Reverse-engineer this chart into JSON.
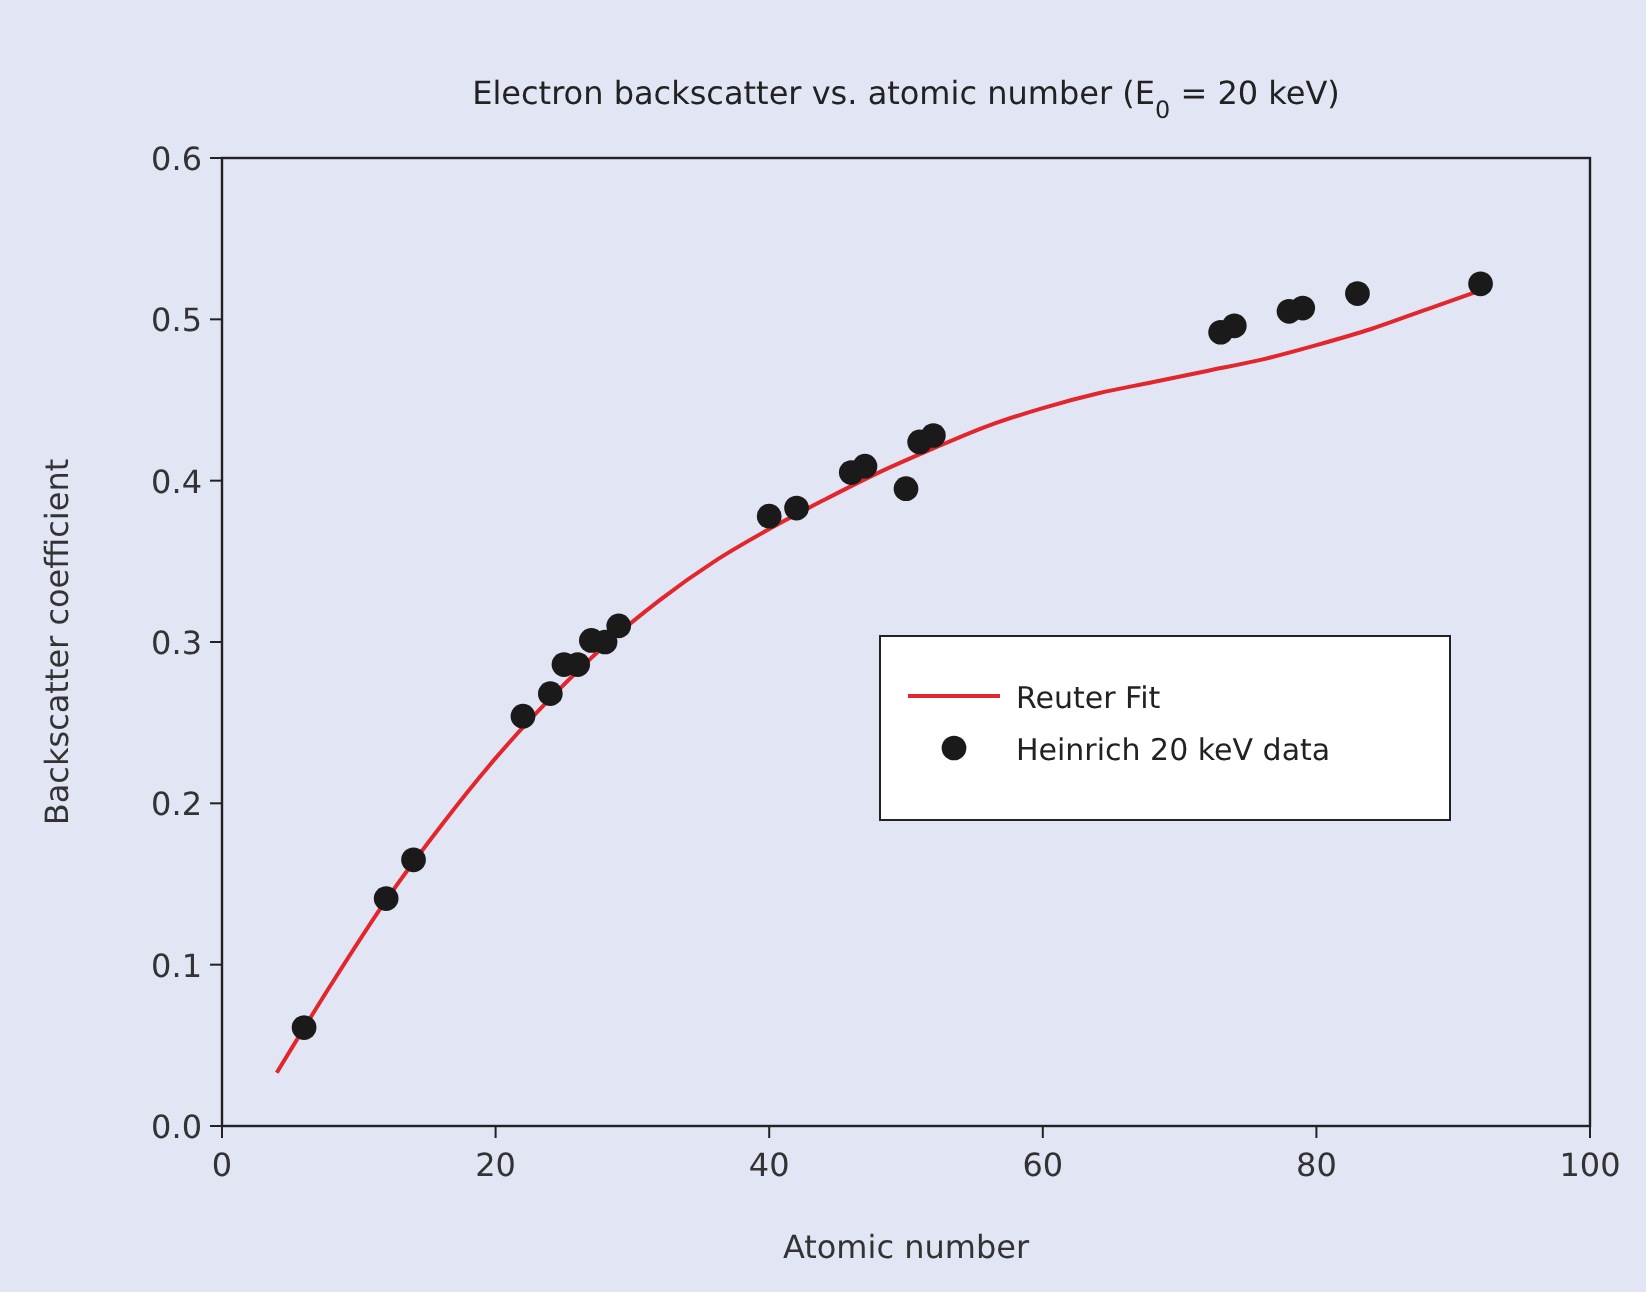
{
  "chart_data": {
    "type": "scatter",
    "title": "Electron backscatter vs. atomic number (E$_{0}$ = 20 keV)",
    "xlabel": "Atomic number",
    "ylabel": "Backscatter coefficient",
    "xlim": [
      0,
      100
    ],
    "xticks": [
      0,
      20,
      40,
      60,
      80,
      100
    ],
    "ylim": [
      0,
      0.6
    ],
    "yticks": [
      {
        "value": 0,
        "label": "0.0"
      },
      0.1,
      0.2,
      0.3,
      0.4,
      0.5,
      0.6
    ],
    "grid": false,
    "legend": "right",
    "series": [
      {
        "name": "Reuter Fit",
        "type": "line",
        "color": "#e3262b",
        "line_style": "solid",
        "x": [
          4,
          8,
          12,
          16,
          20,
          24,
          28,
          32,
          36,
          40,
          44,
          48,
          52,
          56,
          60,
          64,
          68,
          72,
          76,
          80,
          84,
          88,
          92
        ],
        "values": [
          0.033,
          0.088,
          0.14,
          0.186,
          0.228,
          0.265,
          0.298,
          0.326,
          0.35,
          0.37,
          0.388,
          0.405,
          0.42,
          0.434,
          0.445,
          0.454,
          0.461,
          0.468,
          0.475,
          0.484,
          0.494,
          0.506,
          0.518
        ]
      },
      {
        "name": "Heinrich 20 keV data",
        "marker": "circle",
        "color": "#1a1a1a",
        "x": [
          6,
          12,
          14,
          22,
          24,
          25,
          26,
          27,
          28,
          29,
          40,
          42,
          46,
          47,
          50,
          51,
          52,
          73,
          74,
          78,
          79,
          83,
          92
        ],
        "values": [
          0.061,
          0.141,
          0.165,
          0.254,
          0.268,
          0.286,
          0.286,
          0.301,
          0.3,
          0.31,
          0.378,
          0.383,
          0.405,
          0.409,
          0.395,
          0.424,
          0.428,
          0.492,
          0.496,
          0.505,
          0.507,
          0.516,
          0.522
        ]
      }
    ]
  }
}
